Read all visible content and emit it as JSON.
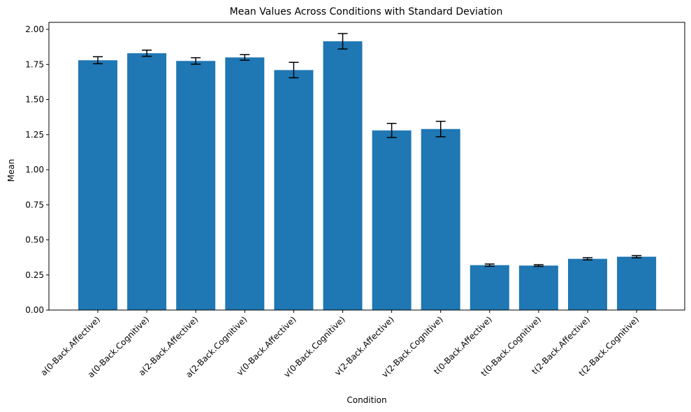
{
  "chart_data": {
    "type": "bar",
    "title": "Mean Values Across Conditions with Standard Deviation",
    "xlabel": "Condition",
    "ylabel": "Mean",
    "ylim": [
      0,
      2.05
    ],
    "yticks": [
      0.0,
      0.25,
      0.5,
      0.75,
      1.0,
      1.25,
      1.5,
      1.75,
      2.0
    ],
    "ytick_labels": [
      "0.00",
      "0.25",
      "0.50",
      "0.75",
      "1.00",
      "1.25",
      "1.50",
      "1.75",
      "2.00"
    ],
    "grid": false,
    "legend": "none",
    "bar_color": "#1f77b4",
    "errorbar_color": "#000000",
    "categories": [
      "a(0-Back.Affective)",
      "a(0-Back.Cognitive)",
      "a(2-Back.Affective)",
      "a(2-Back.Cognitive)",
      "v(0-Back.Affective)",
      "v(0-Back.Cognitive)",
      "v(2-Back.Affective)",
      "v(2-Back.Cognitive)",
      "t(0-Back.Affective)",
      "t(0-Back.Cognitive)",
      "t(2-Back.Affective)",
      "t(2-Back.Cognitive)"
    ],
    "values": [
      1.78,
      1.83,
      1.775,
      1.8,
      1.71,
      1.915,
      1.28,
      1.29,
      0.32,
      0.317,
      0.365,
      0.38
    ],
    "errors": [
      0.025,
      0.022,
      0.023,
      0.02,
      0.055,
      0.055,
      0.05,
      0.055,
      0.008,
      0.006,
      0.008,
      0.008
    ]
  }
}
